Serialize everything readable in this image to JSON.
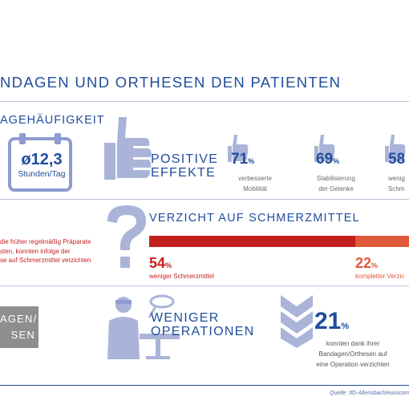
{
  "headline": "NDAGEN UND ORTHESEN DEN PATIENTEN",
  "usage": {
    "section_title": "AGEHÄUFIGKEIT",
    "value": "ø12,3",
    "unit": "Stunden/Tag"
  },
  "positive": {
    "title_line1": "POSITIVE",
    "title_line2": "EFFEKTE",
    "stats": [
      {
        "value": "71",
        "sign": "%",
        "label1": "verbesserte",
        "label2": "Mobilität"
      },
      {
        "value": "69",
        "sign": "%",
        "label1": "Stabilisierung",
        "label2": "der Gelenke"
      },
      {
        "value": "58",
        "sign": "",
        "label1": "wenig",
        "label2": "Schm"
      }
    ]
  },
  "painkillers": {
    "title": "VERZICHT AUF SCHMERZMITTEL",
    "desc_line1": "die früher regelmäßig Präparate",
    "desc_line2": "sten, konnten infolge der",
    "desc_line3": "se auf  Schmerzmittel verzichten",
    "bars": [
      {
        "value": "54",
        "sign": "%",
        "label": "weniger Schmerzmittel",
        "fraction": 0.54,
        "color": "#c41f1f"
      },
      {
        "value": "22",
        "sign": "%",
        "label": "kompletter Verzic",
        "fraction": 0.22,
        "color": "#e0583a"
      }
    ]
  },
  "operations": {
    "gray_line1": "AGEN/",
    "gray_line2": "SEN",
    "title_line1": "WENIGER",
    "title_line2": "OPERATIONEN",
    "value": "21",
    "sign": "%",
    "label1": "konnten dank ihrer",
    "label2": "Bandagen/Orthesen auf",
    "label3": "eine Operation verzichten"
  },
  "source": "Quelle: IfD-Allensbach/eurocom",
  "colors": {
    "blue": "#1f4e9c",
    "icon": "#aab3d8",
    "red": "#c41f1f",
    "orange": "#e0583a"
  }
}
